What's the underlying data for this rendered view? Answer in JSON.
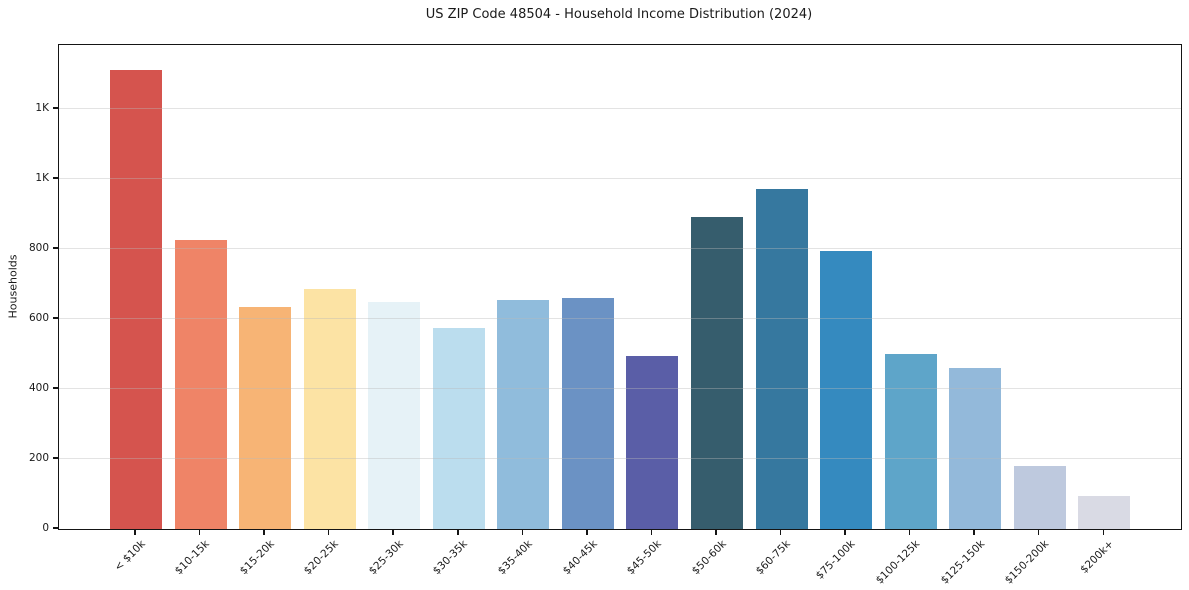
{
  "chart_data": {
    "type": "bar",
    "title": "US ZIP Code 48504 - Household Income Distribution (2024)",
    "xlabel": "",
    "ylabel": "Households",
    "categories": [
      "< $10k",
      "$10-15k",
      "$15-20k",
      "$20-25k",
      "$25-30k",
      "$30-35k",
      "$35-40k",
      "$40-45k",
      "$45-50k",
      "$50-60k",
      "$60-75k",
      "$75-100k",
      "$100-125k",
      "$125-150k",
      "$150-200k",
      "$200k+"
    ],
    "values": [
      1312,
      827,
      634,
      687,
      650,
      573,
      653,
      660,
      494,
      891,
      972,
      794,
      501,
      459,
      180,
      94
    ],
    "bar_colors": [
      "#d5544e",
      "#ef8467",
      "#f7b475",
      "#fce3a4",
      "#e6f2f7",
      "#bbddee",
      "#90bcdc",
      "#6b92c4",
      "#5a5ea7",
      "#365d6d",
      "#36789f",
      "#358abf",
      "#5ea5c9",
      "#93b9da",
      "#bec9de",
      "#d9dae4"
    ],
    "ytick_values": [
      0,
      200,
      400,
      600,
      800,
      1000,
      1200
    ],
    "ytick_labels": [
      "0",
      "200",
      "400",
      "600",
      "800",
      "1K",
      "1K"
    ],
    "ylim": [
      0,
      1383
    ],
    "x_tick_rotation": 45,
    "grid": "horizontal",
    "grid_color": "#e6e6e6",
    "background": "#ffffff",
    "text_color": "#1a1a1a"
  }
}
